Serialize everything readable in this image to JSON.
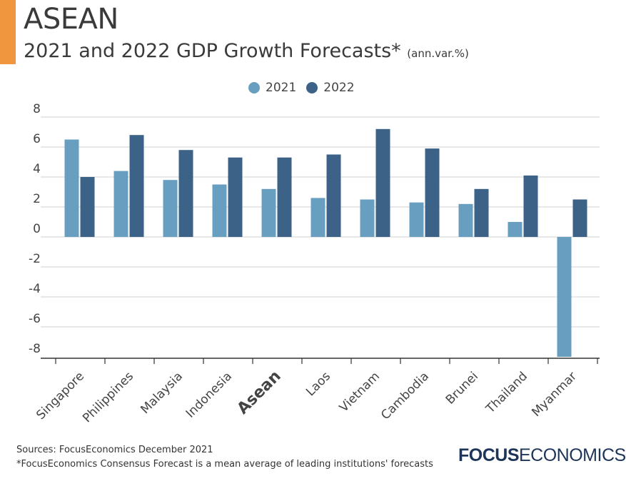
{
  "header": {
    "title": "ASEAN",
    "subtitle": "2021 and 2022 GDP Growth Forecasts*",
    "unit": "(ann.var.%)"
  },
  "footer": {
    "sources": "Sources: FocusEconomics December 2021",
    "note": "*FocusEconomics Consensus Forecast is a mean average of leading institutions' forecasts",
    "logo_bold": "FOCUS",
    "logo_light": "ECONOMICS"
  },
  "chart_data": {
    "type": "bar",
    "categories": [
      "Singapore",
      "Philippines",
      "Malaysia",
      "Indonesia",
      "Asean",
      "Laos",
      "Vietnam",
      "Cambodia",
      "Brunei",
      "Thailand",
      "Myanmar"
    ],
    "highlight_category": "Asean",
    "series": [
      {
        "name": "2021",
        "color": "#689fc1",
        "values": [
          6.5,
          4.4,
          3.8,
          3.5,
          3.2,
          2.6,
          2.5,
          2.3,
          2.2,
          1.0,
          -8.0
        ]
      },
      {
        "name": "2022",
        "color": "#3d6287",
        "values": [
          4.0,
          6.8,
          5.8,
          5.3,
          5.3,
          5.5,
          7.2,
          5.9,
          3.2,
          4.1,
          2.5
        ]
      }
    ],
    "ylim": [
      -8,
      8
    ],
    "yticks": [
      "8",
      "6",
      "4",
      "2",
      "0",
      "-2",
      "-4",
      "-6",
      "-8"
    ],
    "grid": true,
    "legend": "top"
  }
}
